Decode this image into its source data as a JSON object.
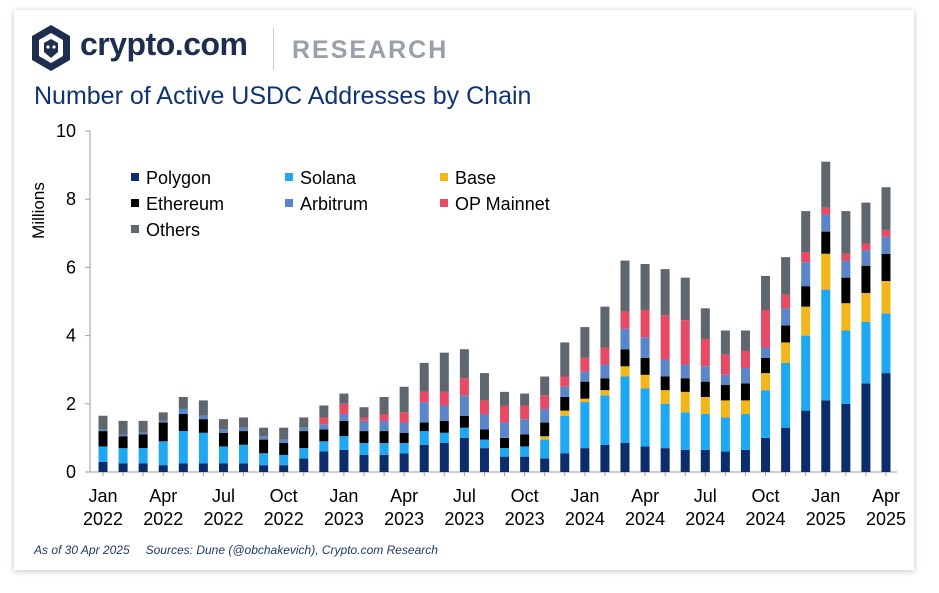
{
  "header": {
    "brand": "crypto.com",
    "section": "RESEARCH",
    "logo_icon": "crypto-com-lion-shield-icon"
  },
  "colors": {
    "Polygon": "#0b2d6b",
    "Solana": "#1ea7f2",
    "Base": "#f2b51a",
    "Ethereum": "#000000",
    "Arbitrum": "#5a86c9",
    "OP Mainnet": "#e64a64",
    "Others": "#5f666e"
  },
  "footer": {
    "as_of": "As of 30 Apr 2025",
    "sources": "Sources: Dune (@obchakevich), Crypto.com Research"
  },
  "chart_data": {
    "type": "bar",
    "stacked": true,
    "title": "Number of Active USDC Addresses by Chain",
    "xlabel": "",
    "ylabel": "Millions",
    "ylim": [
      0,
      10
    ],
    "yticks": [
      0,
      2,
      4,
      6,
      8,
      10
    ],
    "grid": false,
    "legend": "top-left",
    "x_tick_labels": [
      {
        "index": 0,
        "line1": "Jan",
        "line2": "2022"
      },
      {
        "index": 3,
        "line1": "Apr",
        "line2": "2022"
      },
      {
        "index": 6,
        "line1": "Jul",
        "line2": "2022"
      },
      {
        "index": 9,
        "line1": "Oct",
        "line2": "2022"
      },
      {
        "index": 12,
        "line1": "Jan",
        "line2": "2023"
      },
      {
        "index": 15,
        "line1": "Apr",
        "line2": "2023"
      },
      {
        "index": 18,
        "line1": "Jul",
        "line2": "2023"
      },
      {
        "index": 21,
        "line1": "Oct",
        "line2": "2023"
      },
      {
        "index": 24,
        "line1": "Jan",
        "line2": "2024"
      },
      {
        "index": 27,
        "line1": "Apr",
        "line2": "2024"
      },
      {
        "index": 30,
        "line1": "Jul",
        "line2": "2024"
      },
      {
        "index": 33,
        "line1": "Oct",
        "line2": "2024"
      },
      {
        "index": 36,
        "line1": "Jan",
        "line2": "2025"
      },
      {
        "index": 39,
        "line1": "Apr",
        "line2": "2025"
      }
    ],
    "categories": [
      "Jan 2022",
      "Feb 2022",
      "Mar 2022",
      "Apr 2022",
      "May 2022",
      "Jun 2022",
      "Jul 2022",
      "Aug 2022",
      "Sep 2022",
      "Oct 2022",
      "Nov 2022",
      "Dec 2022",
      "Jan 2023",
      "Feb 2023",
      "Mar 2023",
      "Apr 2023",
      "May 2023",
      "Jun 2023",
      "Jul 2023",
      "Aug 2023",
      "Sep 2023",
      "Oct 2023",
      "Nov 2023",
      "Dec 2023",
      "Jan 2024",
      "Feb 2024",
      "Mar 2024",
      "Apr 2024",
      "May 2024",
      "Jun 2024",
      "Jul 2024",
      "Aug 2024",
      "Sep 2024",
      "Oct 2024",
      "Nov 2024",
      "Dec 2024",
      "Jan 2025",
      "Feb 2025",
      "Mar 2025",
      "Apr 2025"
    ],
    "series": [
      {
        "name": "Polygon",
        "values": [
          0.3,
          0.25,
          0.25,
          0.2,
          0.25,
          0.25,
          0.25,
          0.25,
          0.2,
          0.2,
          0.4,
          0.6,
          0.65,
          0.5,
          0.5,
          0.55,
          0.8,
          0.85,
          1.0,
          0.7,
          0.45,
          0.45,
          0.4,
          0.55,
          0.7,
          0.8,
          0.85,
          0.75,
          0.7,
          0.65,
          0.65,
          0.6,
          0.65,
          1.0,
          1.3,
          1.8,
          2.1,
          2.0,
          2.6,
          2.9
        ]
      },
      {
        "name": "Solana",
        "values": [
          0.45,
          0.45,
          0.45,
          0.7,
          0.95,
          0.9,
          0.5,
          0.55,
          0.35,
          0.3,
          0.3,
          0.3,
          0.4,
          0.35,
          0.35,
          0.3,
          0.4,
          0.3,
          0.3,
          0.25,
          0.25,
          0.3,
          0.55,
          1.1,
          1.35,
          1.45,
          1.95,
          1.7,
          1.3,
          1.1,
          1.05,
          1.0,
          1.05,
          1.4,
          1.9,
          2.2,
          3.25,
          2.15,
          1.8,
          1.75
        ]
      },
      {
        "name": "Base",
        "values": [
          0,
          0,
          0,
          0,
          0,
          0,
          0,
          0,
          0,
          0,
          0,
          0,
          0,
          0,
          0,
          0,
          0,
          0,
          0,
          0,
          0,
          0,
          0.1,
          0.15,
          0.1,
          0.15,
          0.3,
          0.4,
          0.4,
          0.6,
          0.5,
          0.5,
          0.4,
          0.5,
          0.6,
          0.85,
          1.05,
          0.8,
          0.85,
          0.95
        ]
      },
      {
        "name": "Ethereum",
        "values": [
          0.45,
          0.35,
          0.4,
          0.55,
          0.5,
          0.4,
          0.4,
          0.4,
          0.4,
          0.35,
          0.5,
          0.35,
          0.45,
          0.35,
          0.35,
          0.3,
          0.25,
          0.35,
          0.35,
          0.3,
          0.3,
          0.35,
          0.4,
          0.4,
          0.5,
          0.35,
          0.5,
          0.5,
          0.4,
          0.4,
          0.45,
          0.45,
          0.5,
          0.45,
          0.5,
          0.6,
          0.65,
          0.75,
          0.8,
          0.8
        ]
      },
      {
        "name": "Arbitrum",
        "values": [
          0.05,
          0.05,
          0.05,
          0.05,
          0.15,
          0.1,
          0.1,
          0.1,
          0.1,
          0.1,
          0.1,
          0.15,
          0.2,
          0.3,
          0.3,
          0.3,
          0.6,
          0.45,
          0.6,
          0.45,
          0.45,
          0.45,
          0.4,
          0.3,
          0.3,
          0.4,
          0.6,
          0.6,
          0.5,
          0.4,
          0.45,
          0.3,
          0.45,
          0.3,
          0.5,
          0.7,
          0.5,
          0.5,
          0.45,
          0.5
        ]
      },
      {
        "name": "OP Mainnet",
        "values": [
          0,
          0,
          0,
          0,
          0,
          0,
          0,
          0,
          0,
          0,
          0,
          0.2,
          0.3,
          0.1,
          0.2,
          0.3,
          0.3,
          0.4,
          0.5,
          0.4,
          0.5,
          0.4,
          0.4,
          0.3,
          0.4,
          0.5,
          0.5,
          0.8,
          1.3,
          1.3,
          0.8,
          0.6,
          0.5,
          1.1,
          0.4,
          0.3,
          0.2,
          0.2,
          0.2,
          0.2
        ]
      },
      {
        "name": "Others",
        "values": [
          0.4,
          0.4,
          0.35,
          0.25,
          0.35,
          0.45,
          0.3,
          0.3,
          0.25,
          0.35,
          0.3,
          0.35,
          0.3,
          0.3,
          0.5,
          0.75,
          0.85,
          1.15,
          0.85,
          0.8,
          0.4,
          0.35,
          0.55,
          1.0,
          0.9,
          1.2,
          1.5,
          1.35,
          1.35,
          1.25,
          0.9,
          0.7,
          0.6,
          1.0,
          1.1,
          1.2,
          1.35,
          1.25,
          1.2,
          1.25
        ]
      }
    ]
  }
}
